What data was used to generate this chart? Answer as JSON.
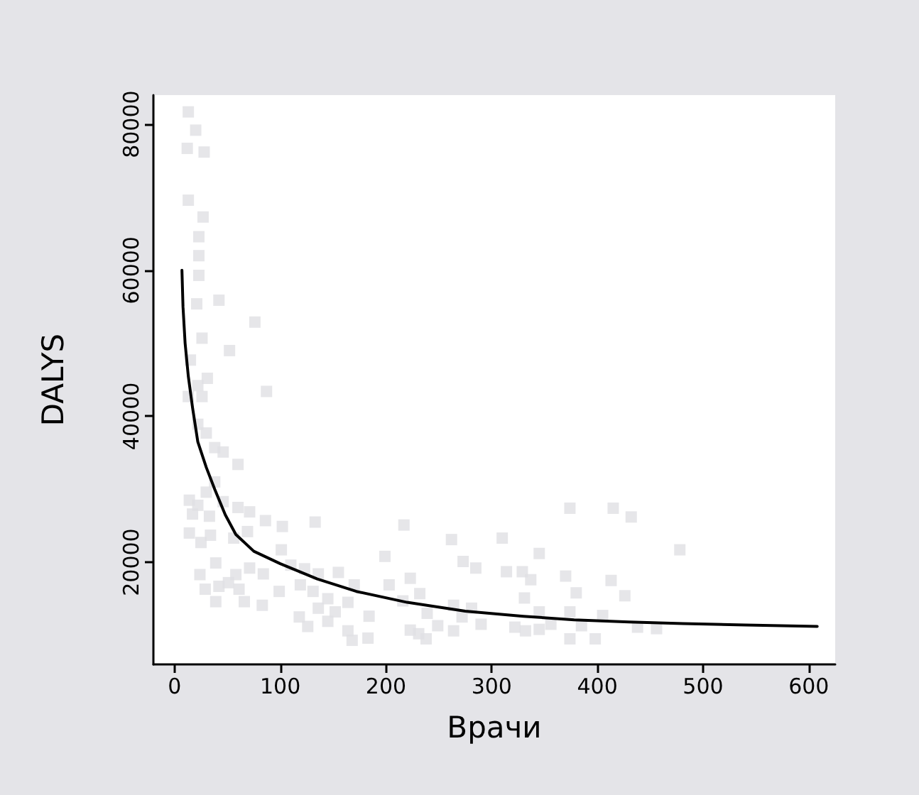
{
  "chart_data": {
    "type": "scatter",
    "xlabel": "Врачи",
    "ylabel": "DALYS",
    "xlim": [
      -20,
      625
    ],
    "ylim": [
      6000,
      84000
    ],
    "xticks": [
      0,
      100,
      200,
      300,
      400,
      500,
      600
    ],
    "yticks": [
      20000,
      40000,
      60000,
      80000
    ],
    "grid": false,
    "series": [
      {
        "marker": "square",
        "color": "#e0e0e4",
        "x": [
          13,
          20,
          12,
          28,
          13,
          27,
          23,
          23,
          23,
          42,
          21,
          26,
          76,
          52,
          15,
          87,
          31,
          22,
          13,
          26,
          22,
          30,
          38,
          46,
          60,
          38,
          30,
          14,
          22,
          46,
          60,
          71,
          17,
          33,
          86,
          102,
          133,
          217,
          14,
          34,
          25,
          69,
          101,
          56,
          199,
          262,
          310,
          374,
          415,
          432,
          478,
          345,
          39,
          24,
          71,
          84,
          123,
          136,
          155,
          170,
          110,
          58,
          29,
          42,
          51,
          61,
          39,
          66,
          83,
          99,
          119,
          131,
          203,
          223,
          232,
          273,
          285,
          314,
          329,
          337,
          331,
          370,
          380,
          413,
          426,
          136,
          145,
          152,
          164,
          118,
          126,
          145,
          164,
          168,
          183,
          184,
          223,
          231,
          238,
          239,
          249,
          264,
          264,
          272,
          281,
          290,
          322,
          332,
          345,
          345,
          356,
          374,
          374,
          385,
          398,
          405,
          438,
          456,
          216
        ],
        "values": [
          81700,
          79200,
          76700,
          76200,
          69600,
          67300,
          64600,
          62000,
          59300,
          55900,
          55400,
          50700,
          52900,
          49000,
          47700,
          43400,
          45200,
          44200,
          42700,
          42700,
          38900,
          37700,
          35700,
          35100,
          33400,
          31000,
          29600,
          28500,
          27800,
          28300,
          27500,
          26900,
          26600,
          26300,
          25700,
          24900,
          25500,
          25100,
          24000,
          23700,
          22700,
          24200,
          21700,
          23300,
          20800,
          23100,
          23300,
          27400,
          27400,
          26200,
          21700,
          21200,
          19900,
          18300,
          19200,
          18400,
          19100,
          18400,
          18600,
          16900,
          19600,
          18300,
          16300,
          16700,
          17200,
          16300,
          14600,
          14600,
          14100,
          16000,
          16900,
          16000,
          16900,
          17800,
          15700,
          20100,
          19200,
          18700,
          18700,
          17600,
          15100,
          18100,
          15800,
          17500,
          15400,
          13700,
          15000,
          13200,
          14500,
          12500,
          11200,
          11900,
          10600,
          9300,
          9600,
          12600,
          10700,
          10200,
          9500,
          13000,
          11300,
          10600,
          14100,
          12500,
          13700,
          11500,
          11100,
          10600,
          13200,
          10800,
          11500,
          13200,
          9500,
          11300,
          9500,
          12700,
          11100,
          10900,
          14700
        ]
      },
      {
        "type": "line",
        "marker": "none",
        "line_style": "solid",
        "color": "#000000",
        "x": [
          7,
          8,
          10,
          13,
          17,
          22,
          30,
          38,
          48,
          58,
          75,
          100,
          135,
          172,
          220,
          275,
          330,
          378,
          430,
          481,
          540,
          608
        ],
        "values": [
          60000,
          55000,
          50000,
          45500,
          41200,
          36500,
          33000,
          30000,
          26500,
          23800,
          21500,
          19800,
          17700,
          16000,
          14500,
          13300,
          12600,
          12100,
          11800,
          11600,
          11400,
          11200
        ]
      }
    ]
  }
}
